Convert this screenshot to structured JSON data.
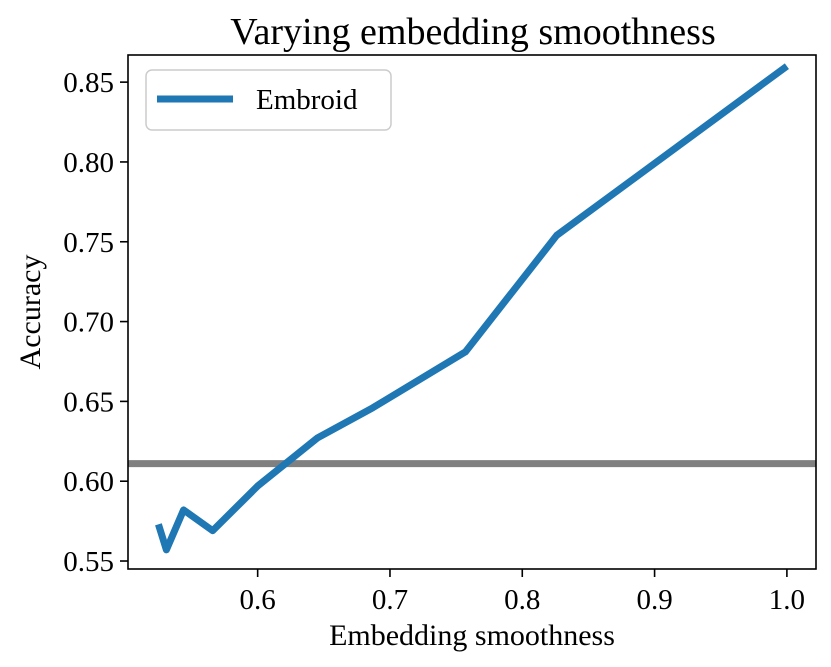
{
  "chart_data": {
    "type": "line",
    "title": "Varying embedding smoothness",
    "xlabel": "Embedding smoothness",
    "ylabel": "Accuracy",
    "xlim": [
      0.502,
      1.022
    ],
    "ylim": [
      0.545,
      0.867
    ],
    "xticks": [
      0.6,
      0.7,
      0.8,
      0.9,
      1.0
    ],
    "xtick_labels": [
      "0.6",
      "0.7",
      "0.8",
      "0.9",
      "1.0"
    ],
    "yticks": [
      0.55,
      0.6,
      0.65,
      0.7,
      0.75,
      0.8,
      0.85
    ],
    "ytick_labels": [
      "0.55",
      "0.60",
      "0.65",
      "0.70",
      "0.75",
      "0.80",
      "0.85"
    ],
    "legend_position": "top-left",
    "series": [
      {
        "name": "Embroid",
        "color": "#1f77b4",
        "x": [
          0.525,
          0.531,
          0.544,
          0.566,
          0.6,
          0.645,
          0.687,
          0.757,
          0.826,
          1.0
        ],
        "y": [
          0.573,
          0.557,
          0.582,
          0.569,
          0.597,
          0.627,
          0.646,
          0.681,
          0.754,
          0.86
        ]
      }
    ],
    "reference_lines": [
      {
        "orientation": "horizontal",
        "y": 0.611,
        "color": "#808080"
      }
    ]
  }
}
